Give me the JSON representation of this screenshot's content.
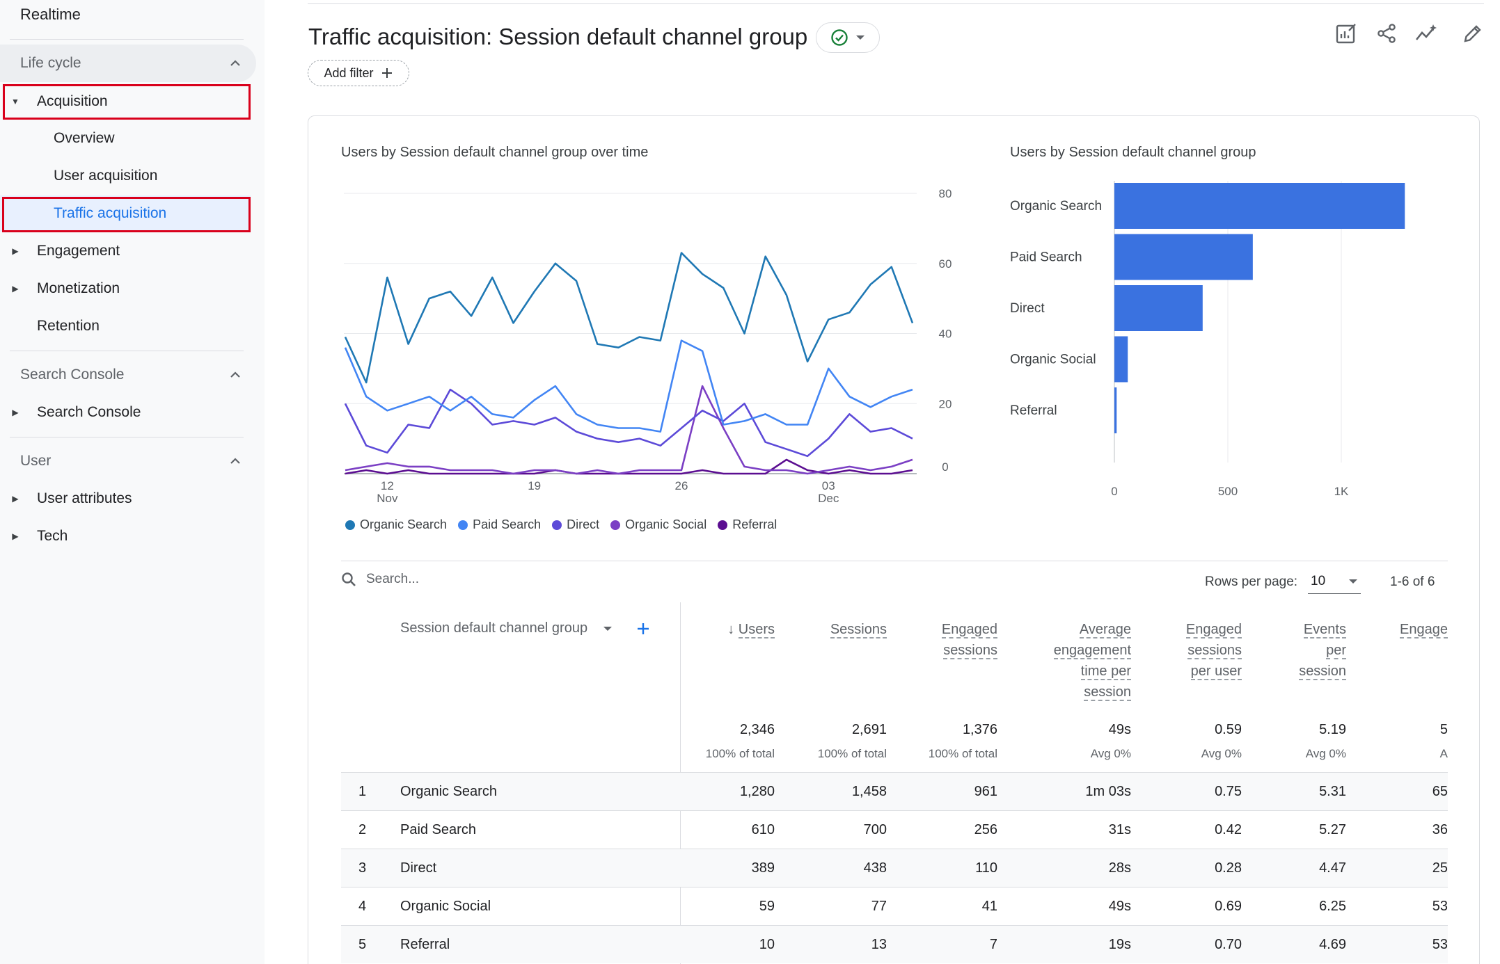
{
  "sidebar": {
    "realtime": "Realtime",
    "lifecycle": "Life cycle",
    "acquisition": "Acquisition",
    "overview": "Overview",
    "user_acquisition": "User acquisition",
    "traffic_acquisition": "Traffic acquisition",
    "engagement": "Engagement",
    "monetization": "Monetization",
    "retention": "Retention",
    "search_console_section": "Search Console",
    "search_console_item": "Search Console",
    "user_section": "User",
    "user_attributes": "User attributes",
    "tech": "Tech"
  },
  "header": {
    "title": "Traffic acquisition: Session default channel group",
    "add_filter": "Add filter"
  },
  "colors": {
    "organic_search": "#1f78b4",
    "paid_search": "#4285f4",
    "direct": "#5c4ad8",
    "organic_social": "#7b3fc4",
    "referral": "#5b0e91",
    "bar": "#3a72e0",
    "highlight": "#d9001b",
    "selected_text": "#1a73e8"
  },
  "chart_data": [
    {
      "type": "line",
      "title": "Users by Session default channel group over time",
      "x_tick_labels": [
        {
          "day": "12",
          "month": "Nov"
        },
        {
          "day": "19",
          "month": ""
        },
        {
          "day": "26",
          "month": ""
        },
        {
          "day": "03",
          "month": "Dec"
        }
      ],
      "x_tick_index": [
        2,
        9,
        16,
        23
      ],
      "y_ticks": [
        0,
        20,
        40,
        60,
        80
      ],
      "ylim": [
        0,
        80
      ],
      "legend_position": "bottom",
      "series": [
        {
          "name": "Organic Search",
          "color_key": "organic_search",
          "values": [
            39,
            26,
            56,
            37,
            50,
            52,
            45,
            56,
            43,
            52,
            60,
            55,
            37,
            36,
            39,
            38,
            63,
            57,
            53,
            40,
            62,
            51,
            32,
            44,
            46,
            54,
            59,
            43
          ]
        },
        {
          "name": "Paid Search",
          "color_key": "paid_search",
          "values": [
            36,
            22,
            18,
            20,
            22,
            18,
            22,
            17,
            16,
            21,
            25,
            17,
            14,
            13,
            13,
            12,
            38,
            35,
            14,
            15,
            17,
            14,
            14,
            30,
            22,
            19,
            22,
            24
          ]
        },
        {
          "name": "Direct",
          "color_key": "direct",
          "values": [
            20,
            8,
            6,
            14,
            13,
            24,
            20,
            14,
            15,
            14,
            16,
            12,
            10,
            9,
            10,
            8,
            13,
            18,
            15,
            20,
            9,
            7,
            5,
            10,
            17,
            12,
            13,
            10
          ]
        },
        {
          "name": "Organic Social",
          "color_key": "organic_social",
          "values": [
            1,
            2,
            3,
            2,
            2,
            1,
            1,
            1,
            0,
            1,
            1,
            0,
            1,
            0,
            1,
            1,
            1,
            25,
            13,
            2,
            1,
            1,
            0,
            1,
            2,
            1,
            2,
            4
          ]
        },
        {
          "name": "Referral",
          "color_key": "referral",
          "values": [
            0,
            1,
            0,
            1,
            0,
            0,
            0,
            0,
            0,
            0,
            1,
            0,
            0,
            0,
            0,
            0,
            0,
            1,
            0,
            0,
            0,
            4,
            1,
            0,
            1,
            0,
            0,
            1
          ]
        }
      ]
    },
    {
      "type": "bar",
      "orientation": "horizontal",
      "title": "Users by Session default channel group",
      "categories": [
        "Organic Search",
        "Paid Search",
        "Direct",
        "Organic Social",
        "Referral"
      ],
      "values": [
        1280,
        610,
        389,
        59,
        10
      ],
      "x_ticks": [
        "0",
        "500",
        "1K"
      ],
      "xlim": [
        0,
        1400
      ]
    }
  ],
  "table": {
    "search_placeholder": "Search...",
    "rows_per_page_label": "Rows per page:",
    "rows_per_page_value": "10",
    "pager": "1-6 of 6",
    "dimension_header": "Session default channel group",
    "metric_headers": [
      {
        "lines": [
          "Users"
        ],
        "sort": "↓"
      },
      {
        "lines": [
          "Sessions"
        ]
      },
      {
        "lines": [
          "Engaged",
          "sessions"
        ]
      },
      {
        "lines": [
          "Average",
          "engagement",
          "time per",
          "session"
        ]
      },
      {
        "lines": [
          "Engaged",
          "sessions",
          "per user"
        ]
      },
      {
        "lines": [
          "Events",
          "per",
          "session"
        ]
      },
      {
        "lines": [
          "Engage"
        ]
      }
    ],
    "totals": [
      "2,346",
      "2,691",
      "1,376",
      "49s",
      "0.59",
      "5.19",
      "5"
    ],
    "totals_sub": [
      "100% of total",
      "100% of total",
      "100% of total",
      "Avg 0%",
      "Avg 0%",
      "Avg 0%",
      "A"
    ],
    "rows": [
      {
        "index": "1",
        "dim": "Organic Search",
        "values": [
          "1,280",
          "1,458",
          "961",
          "1m 03s",
          "0.75",
          "5.31",
          "65"
        ]
      },
      {
        "index": "2",
        "dim": "Paid Search",
        "values": [
          "610",
          "700",
          "256",
          "31s",
          "0.42",
          "5.27",
          "36"
        ]
      },
      {
        "index": "3",
        "dim": "Direct",
        "values": [
          "389",
          "438",
          "110",
          "28s",
          "0.28",
          "4.47",
          "25"
        ]
      },
      {
        "index": "4",
        "dim": "Organic Social",
        "values": [
          "59",
          "77",
          "41",
          "49s",
          "0.69",
          "6.25",
          "53"
        ]
      },
      {
        "index": "5",
        "dim": "Referral",
        "values": [
          "10",
          "13",
          "7",
          "19s",
          "0.70",
          "4.69",
          "53"
        ]
      }
    ]
  }
}
